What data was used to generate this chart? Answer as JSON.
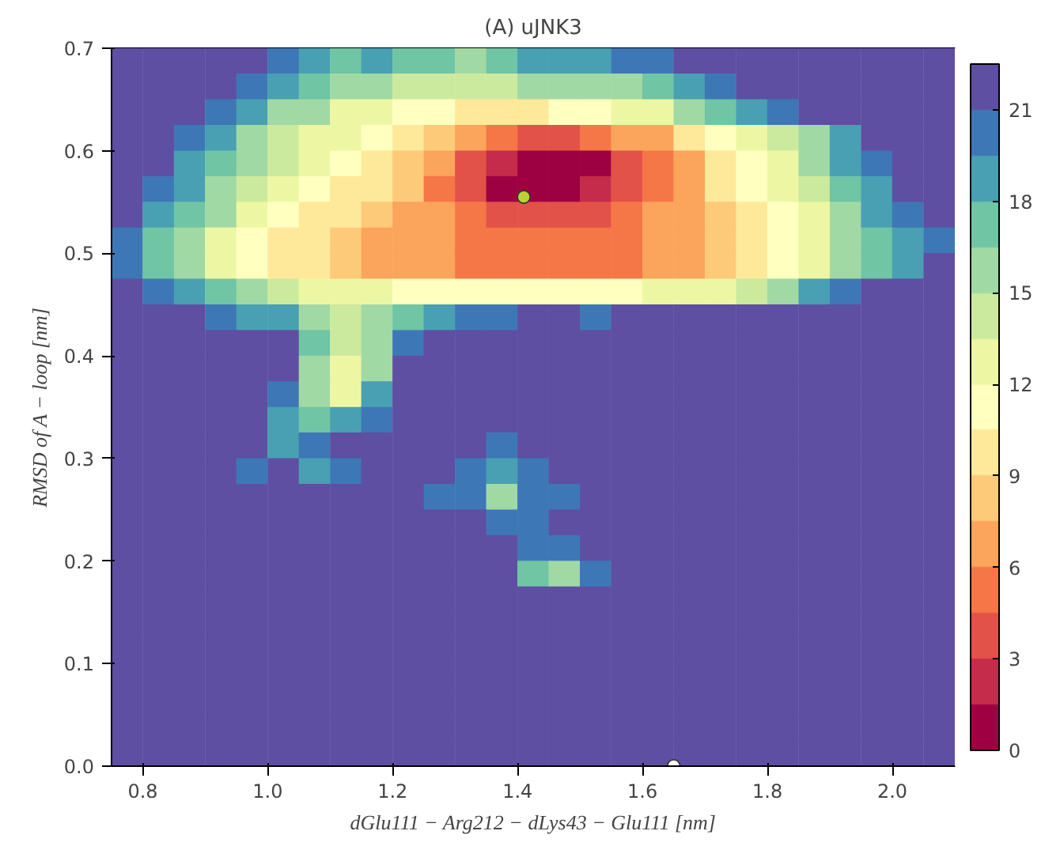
{
  "chart_data": {
    "type": "heatmap",
    "title": "(A) uJNK3",
    "xlabel": "dGlu111 − Arg212 − dLys43 − Glu111 [nm]",
    "ylabel": "RMSD of A − loop [nm]",
    "x": [
      0.775,
      0.825,
      0.875,
      0.925,
      0.975,
      1.025,
      1.075,
      1.125,
      1.175,
      1.225,
      1.275,
      1.325,
      1.375,
      1.425,
      1.475,
      1.525,
      1.575,
      1.625,
      1.675,
      1.725,
      1.775,
      1.825,
      1.875,
      1.925,
      1.975,
      2.025,
      2.075
    ],
    "y": [
      0.6875,
      0.6625,
      0.6375,
      0.6125,
      0.5875,
      0.5625,
      0.5375,
      0.5125,
      0.4875,
      0.4625,
      0.4375,
      0.4125,
      0.3875,
      0.3625,
      0.3375,
      0.3125,
      0.2875,
      0.2625,
      0.2375,
      0.2125,
      0.1875,
      0.1625,
      0.1375,
      0.1125,
      0.0875,
      0.0625,
      0.0375,
      0.0125
    ],
    "cells": [
      [
        22,
        22,
        22,
        22,
        22,
        20,
        18,
        17,
        18,
        17,
        17,
        16,
        17,
        18,
        18,
        19,
        20,
        20,
        22,
        22,
        22,
        22,
        22,
        22,
        22,
        22,
        22
      ],
      [
        22,
        22,
        22,
        22,
        20,
        18,
        17,
        15,
        15,
        14,
        14,
        14,
        14,
        15,
        15,
        15,
        16,
        17,
        18,
        20,
        22,
        22,
        22,
        22,
        22,
        22,
        22
      ],
      [
        22,
        22,
        22,
        20,
        18,
        16,
        15,
        13,
        12,
        11,
        11,
        10,
        10,
        10,
        11,
        11,
        12,
        13,
        15,
        17,
        19,
        20,
        22,
        22,
        22,
        22,
        22
      ],
      [
        22,
        22,
        20,
        18,
        16,
        14,
        13,
        12,
        11,
        9,
        8,
        6,
        5,
        4,
        4,
        5,
        6,
        7,
        9,
        11,
        12,
        14,
        16,
        19,
        22,
        22,
        22
      ],
      [
        22,
        22,
        19,
        17,
        15,
        14,
        12,
        11,
        10,
        8,
        6,
        4,
        2,
        1,
        1,
        1,
        3,
        5,
        7,
        9,
        11,
        13,
        15,
        18,
        20,
        22,
        22
      ],
      [
        22,
        20,
        18,
        16,
        14,
        12,
        11,
        10,
        9,
        7.5,
        5,
        3,
        1,
        1,
        1,
        2,
        4,
        5,
        7,
        9,
        11,
        12,
        14,
        17,
        19,
        21,
        22
      ],
      [
        22,
        19,
        17,
        15,
        13,
        11,
        10,
        9,
        8,
        7,
        6,
        5,
        4,
        3,
        3,
        4,
        5,
        6,
        7,
        8,
        10,
        11,
        13,
        15,
        18,
        20,
        22
      ],
      [
        20,
        17,
        15,
        13,
        11,
        10,
        9,
        8,
        7,
        7,
        6,
        5,
        5,
        5,
        5,
        5,
        5,
        6,
        7,
        8,
        9,
        11,
        13,
        15,
        17,
        19,
        20
      ],
      [
        20,
        17,
        15,
        13,
        11,
        10,
        9,
        8,
        7,
        7,
        6,
        5,
        5,
        5,
        5,
        5,
        5,
        6,
        7,
        8,
        9,
        11,
        13,
        15,
        17,
        19,
        21
      ],
      [
        22,
        20,
        19,
        17,
        15,
        14,
        13,
        12,
        12,
        11,
        11,
        11,
        11,
        11,
        11,
        11,
        11,
        12,
        12,
        13,
        14,
        16,
        18,
        20,
        22,
        22,
        22
      ],
      [
        22,
        22,
        22,
        20,
        19,
        18,
        16,
        14,
        15,
        17,
        19,
        20,
        20,
        21,
        21,
        20,
        21,
        21,
        22,
        22,
        22,
        22,
        22,
        22,
        22,
        22,
        22
      ],
      [
        22,
        22,
        22,
        22,
        22,
        22,
        17,
        14,
        15,
        20,
        22,
        22,
        22,
        21,
        22,
        22,
        22,
        22,
        22,
        22,
        22,
        22,
        22,
        22,
        22,
        22,
        22
      ],
      [
        22,
        22,
        22,
        22,
        22,
        22,
        16,
        13,
        15,
        22,
        22,
        22,
        22,
        22,
        22,
        22,
        22,
        22,
        22,
        22,
        22,
        22,
        22,
        22,
        22,
        22,
        22
      ],
      [
        22,
        22,
        22,
        22,
        22,
        20,
        15,
        13,
        18,
        22,
        22,
        22,
        22,
        22,
        22,
        22,
        22,
        22,
        22,
        22,
        22,
        22,
        22,
        22,
        22,
        22,
        22
      ],
      [
        22,
        22,
        22,
        22,
        22,
        19,
        17,
        18,
        20,
        22,
        22,
        22,
        22,
        22,
        22,
        22,
        22,
        22,
        22,
        22,
        22,
        22,
        22,
        22,
        22,
        22,
        22
      ],
      [
        22,
        22,
        22,
        22,
        21,
        19,
        20,
        21,
        22,
        22,
        22,
        21,
        20,
        21,
        22,
        22,
        22,
        22,
        22,
        22,
        22,
        22,
        22,
        22,
        22,
        22,
        22
      ],
      [
        22,
        22,
        22,
        22,
        20,
        21,
        19,
        20,
        22,
        22,
        22,
        20,
        19,
        20,
        21,
        22,
        22,
        22,
        22,
        22,
        22,
        22,
        22,
        22,
        22,
        22,
        22
      ],
      [
        22,
        22,
        22,
        22,
        22,
        22,
        22,
        22,
        22,
        22,
        20,
        20,
        16,
        20,
        20,
        22,
        22,
        22,
        22,
        22,
        22,
        22,
        22,
        22,
        22,
        22,
        22
      ],
      [
        22,
        22,
        22,
        22,
        22,
        22,
        22,
        22,
        22,
        22,
        22,
        21,
        20,
        20,
        21,
        22,
        22,
        22,
        22,
        22,
        22,
        22,
        22,
        22,
        22,
        22,
        22
      ],
      [
        22,
        22,
        22,
        22,
        22,
        22,
        22,
        22,
        22,
        22,
        22,
        22,
        22,
        20,
        20,
        21,
        22,
        22,
        22,
        22,
        22,
        22,
        22,
        22,
        22,
        22,
        22
      ],
      [
        22,
        22,
        22,
        22,
        22,
        22,
        22,
        22,
        22,
        22,
        22,
        22,
        22,
        17,
        16,
        20,
        22,
        22,
        22,
        22,
        22,
        22,
        22,
        22,
        22,
        22,
        22
      ],
      [
        22,
        22,
        22,
        22,
        22,
        22,
        22,
        22,
        22,
        22,
        22,
        22,
        22,
        22,
        21,
        21,
        22,
        22,
        22,
        22,
        22,
        22,
        22,
        22,
        22,
        22,
        22
      ],
      [
        22,
        22,
        22,
        22,
        22,
        22,
        22,
        22,
        22,
        22,
        22,
        22,
        22,
        22,
        22,
        22,
        22,
        22,
        22,
        22,
        22,
        22,
        22,
        22,
        22,
        22,
        22
      ],
      [
        22,
        22,
        22,
        22,
        22,
        22,
        22,
        22,
        22,
        22,
        22,
        22,
        22,
        22,
        22,
        22,
        22,
        22,
        22,
        22,
        22,
        22,
        22,
        22,
        22,
        22,
        22
      ],
      [
        22,
        22,
        22,
        22,
        22,
        22,
        22,
        22,
        22,
        22,
        22,
        22,
        22,
        22,
        22,
        22,
        22,
        22,
        22,
        22,
        22,
        22,
        22,
        22,
        22,
        22,
        22
      ],
      [
        22,
        22,
        22,
        22,
        22,
        22,
        22,
        22,
        22,
        22,
        22,
        22,
        22,
        22,
        22,
        22,
        22,
        22,
        22,
        22,
        22,
        22,
        22,
        22,
        22,
        22,
        22
      ],
      [
        22,
        22,
        22,
        22,
        22,
        22,
        22,
        22,
        22,
        22,
        22,
        22,
        22,
        22,
        22,
        22,
        22,
        22,
        22,
        22,
        22,
        22,
        22,
        22,
        22,
        22,
        22
      ],
      [
        22,
        22,
        22,
        22,
        22,
        22,
        22,
        22,
        22,
        22,
        22,
        22,
        22,
        22,
        22,
        22,
        22,
        22,
        22,
        22,
        22,
        22,
        22,
        22,
        22,
        22,
        22
      ]
    ],
    "clim": [
      0,
      22.5
    ],
    "cticks": [
      0,
      3,
      6,
      9,
      12,
      15,
      18,
      21
    ],
    "xlim": [
      0.75,
      2.1
    ],
    "xticks": [
      0.8,
      {
        "value": 1,
        "label": "1.0"
      },
      1.2,
      1.4,
      1.6,
      1.8,
      {
        "value": 2,
        "label": "2.0"
      }
    ],
    "ylim": [
      0,
      0.7
    ],
    "yticks": [
      {
        "value": 0,
        "label": "0.0"
      },
      0.1,
      0.2,
      0.3,
      0.4,
      0.5,
      0.6,
      0.7
    ],
    "series": [
      {
        "type": "scatter",
        "x": [
          1.41
        ],
        "values": [
          0.555
        ],
        "color": "#b8d332"
      },
      {
        "type": "scatter",
        "x": [
          1.65
        ],
        "values": [
          0.0
        ],
        "color": "#ffffff"
      }
    ],
    "marker": "circle",
    "grid": false
  }
}
